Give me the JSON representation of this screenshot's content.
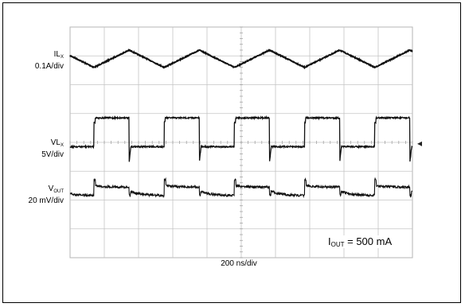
{
  "chart_data": {
    "type": "line",
    "xlabel": "200 ns/div",
    "x_divisions": 10,
    "y_divisions": 8,
    "grid": true,
    "annotation": {
      "prefix": "I",
      "sub": "OUT",
      "text": " = 500 mA"
    },
    "series": [
      {
        "name": "IL",
        "name_sub": "X",
        "scale": "0.1A/div",
        "waveform": "triangle",
        "period_div": 2.05,
        "peak_to_peak_div": 0.6,
        "center_div": 1.1
      },
      {
        "name": "VL",
        "name_sub": "X",
        "scale": "5V/div",
        "waveform": "square",
        "period_div": 2.05,
        "amplitude_div": 1.0,
        "low_level_div": 4.15
      },
      {
        "name": "V",
        "name_sub": "OUT",
        "scale": "20 mV/div",
        "waveform": "ripple",
        "period_div": 2.05,
        "ripple_div": 0.3,
        "center_div": 5.7
      }
    ]
  }
}
